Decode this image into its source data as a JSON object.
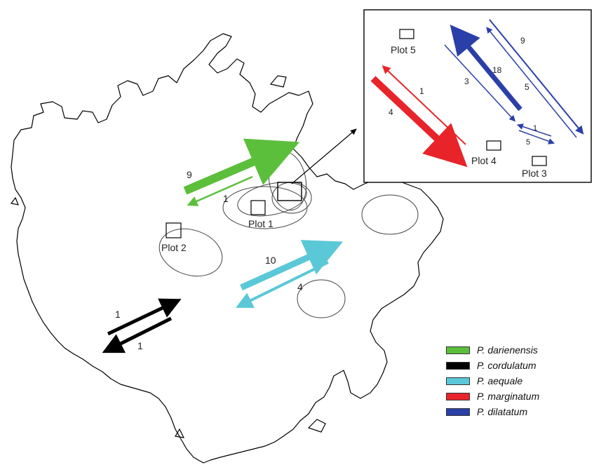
{
  "plots": [
    {
      "id": "plot1",
      "label": "Plot 1"
    },
    {
      "id": "plot2",
      "label": "Plot 2"
    },
    {
      "id": "plot3",
      "label": "Plot 3"
    },
    {
      "id": "plot4",
      "label": "Plot 4"
    },
    {
      "id": "plot5",
      "label": "Plot 5"
    }
  ],
  "movements": {
    "darienensis_forward": "9",
    "darienensis_back": "1",
    "aequale_forward": "10",
    "aequale_back": "4",
    "cordulatum_forward": "1",
    "cordulatum_back": "1",
    "marginatum_forward": "4",
    "marginatum_back": "1",
    "dilatatum_big": "18",
    "dilatatum_thin": "3",
    "dilatatum_outer_up": "9",
    "dilatatum_outer_down": "5",
    "dilatatum_small_1": "1",
    "dilatatum_small_2": "5"
  },
  "legend": [
    {
      "name": "P. darienensis",
      "color": "#5cbf3c"
    },
    {
      "name": "P. cordulatum",
      "color": "#000000"
    },
    {
      "name": "P. aequale",
      "color": "#5bc8d8"
    },
    {
      "name": "P. marginatum",
      "color": "#e8242a"
    },
    {
      "name": "P. dilatatum",
      "color": "#2b3fa8"
    }
  ]
}
